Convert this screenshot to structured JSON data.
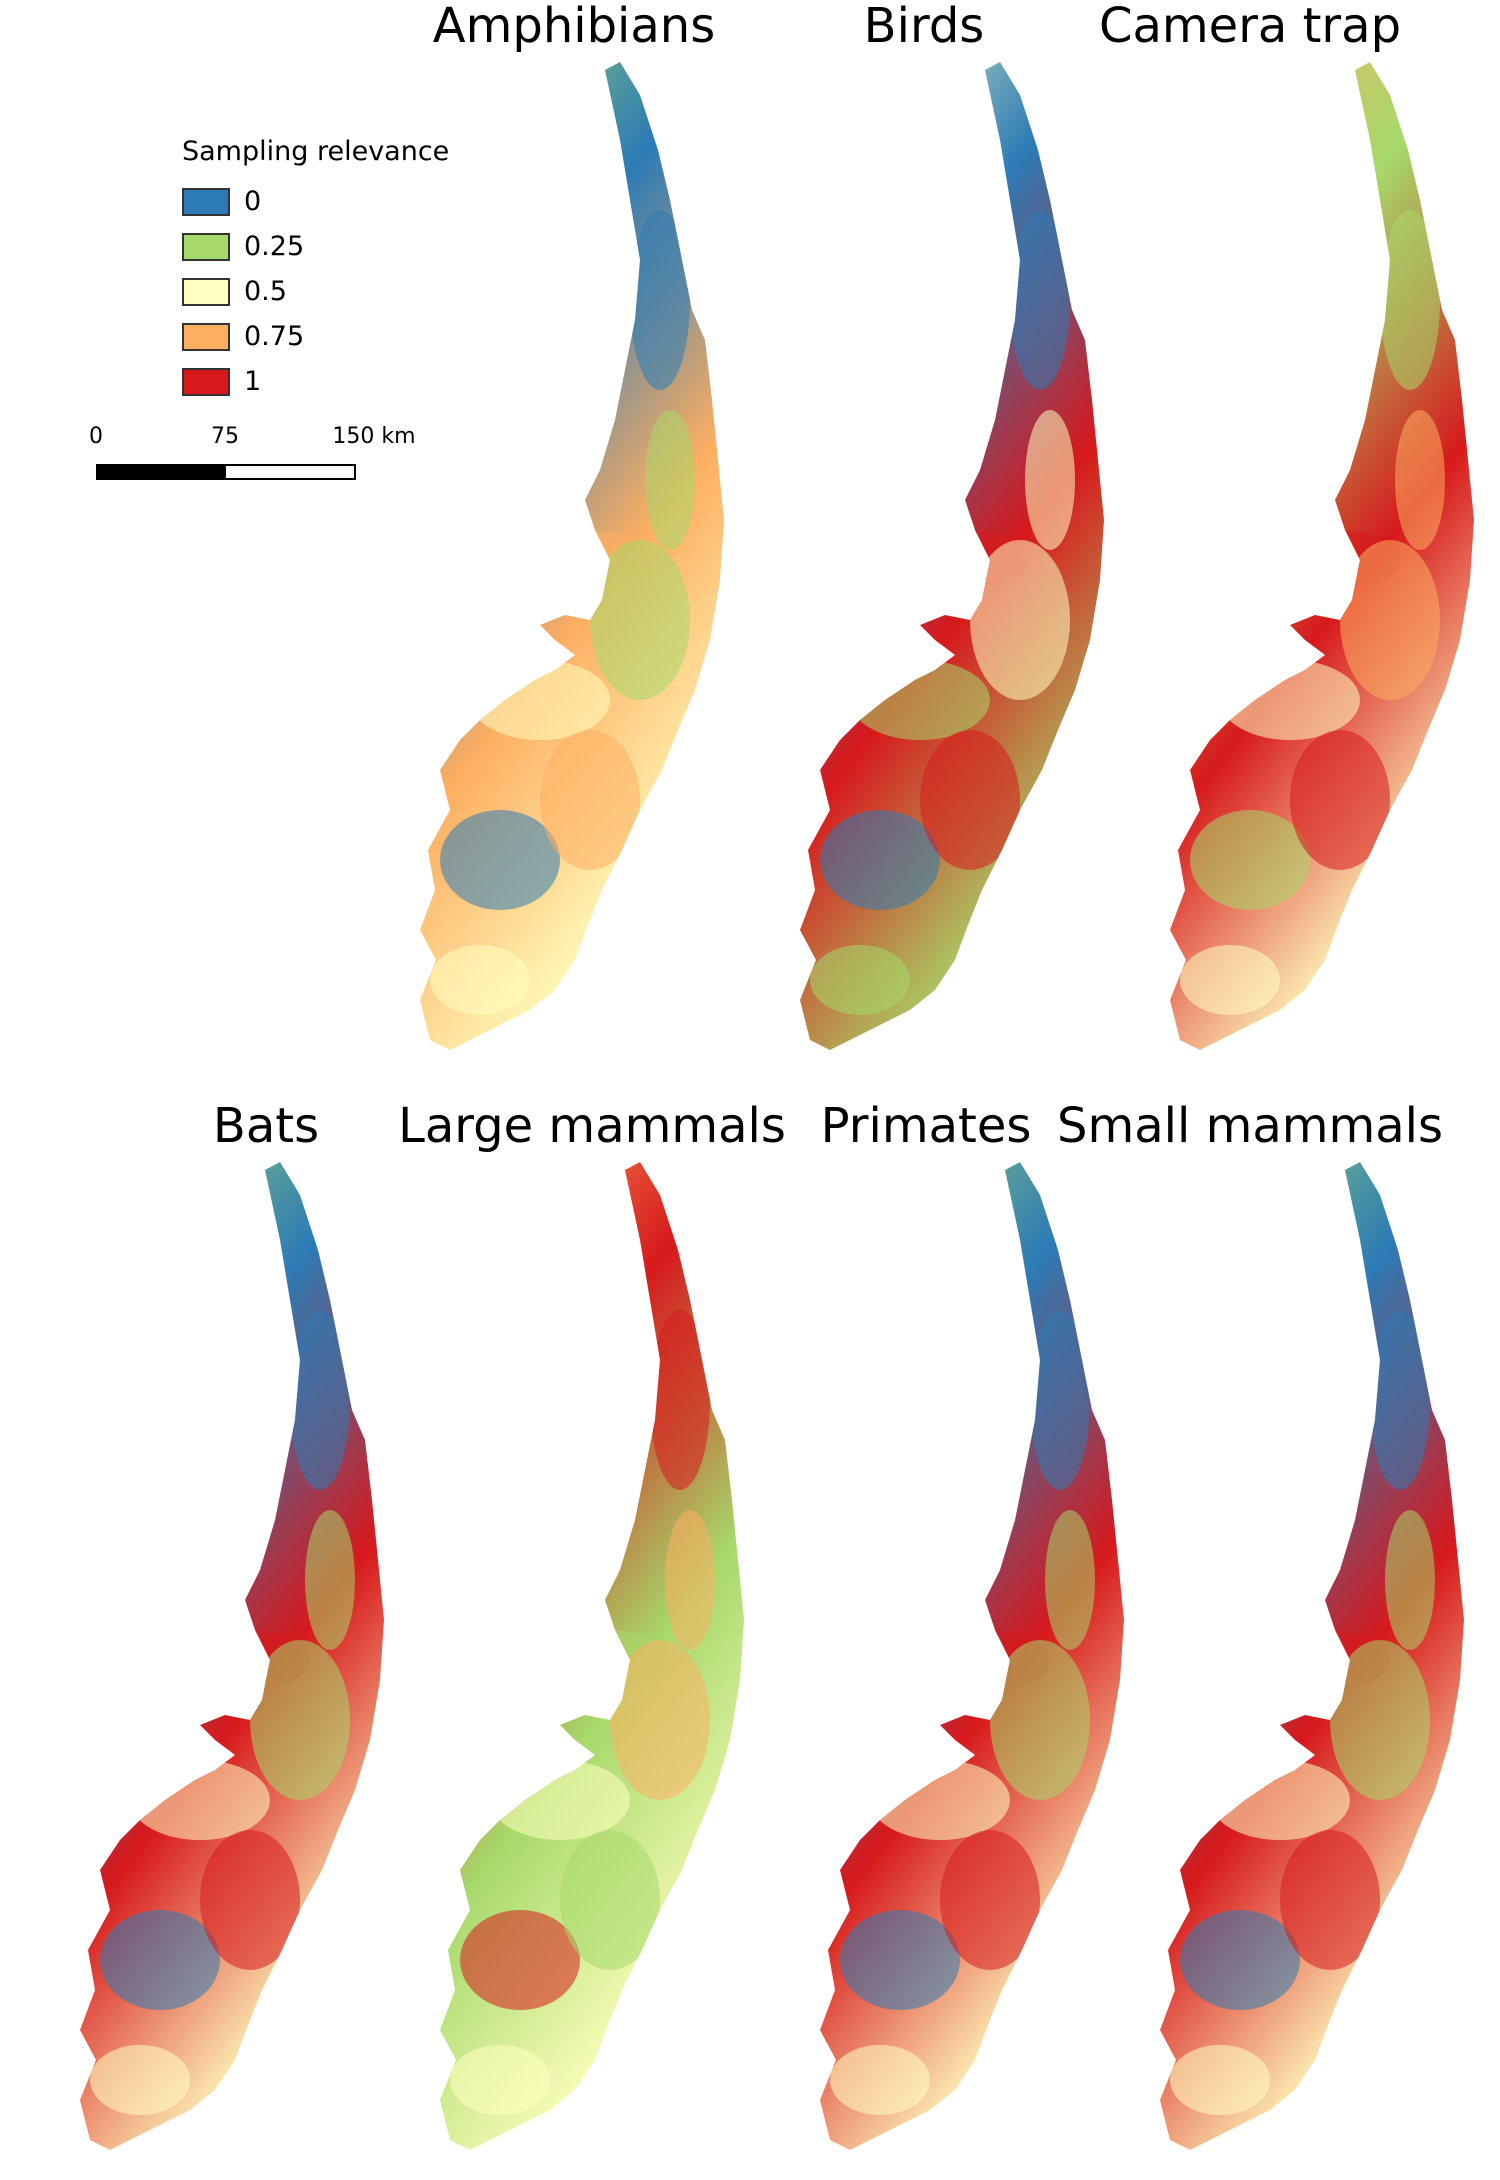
{
  "legend": {
    "title": "Sampling relevance",
    "items": [
      {
        "label": "0",
        "color": "#2c7bb6"
      },
      {
        "label": "0.25",
        "color": "#a6d96a"
      },
      {
        "label": "0.5",
        "color": "#ffffbf"
      },
      {
        "label": "0.75",
        "color": "#fdae61"
      },
      {
        "label": "1",
        "color": "#d7191c"
      }
    ]
  },
  "scalebar": {
    "labels": [
      "0",
      "75",
      "150 km"
    ]
  },
  "maps": [
    {
      "id": "amphibians",
      "title": "Amphibians",
      "colors": [
        "#a6d96a",
        "#2c7bb6",
        "#fdae61",
        "#ffffbf"
      ]
    },
    {
      "id": "birds",
      "title": "Birds",
      "colors": [
        "#ffffbf",
        "#2c7bb6",
        "#d7191c",
        "#a6d96a"
      ]
    },
    {
      "id": "camera-trap",
      "title": "Camera trap",
      "colors": [
        "#fdae61",
        "#a6d96a",
        "#d7191c",
        "#ffffbf"
      ]
    },
    {
      "id": "bats",
      "title": "Bats",
      "colors": [
        "#a6d96a",
        "#2c7bb6",
        "#d7191c",
        "#ffffbf"
      ]
    },
    {
      "id": "large-mammals",
      "title": "Large mammals",
      "colors": [
        "#fdae61",
        "#d7191c",
        "#a6d96a",
        "#ffffbf"
      ]
    },
    {
      "id": "primates",
      "title": "Primates",
      "colors": [
        "#a6d96a",
        "#2c7bb6",
        "#d7191c",
        "#ffffbf"
      ]
    },
    {
      "id": "small-mammals",
      "title": "Small mammals",
      "colors": [
        "#a6d96a",
        "#2c7bb6",
        "#d7191c",
        "#ffffbf"
      ]
    }
  ]
}
